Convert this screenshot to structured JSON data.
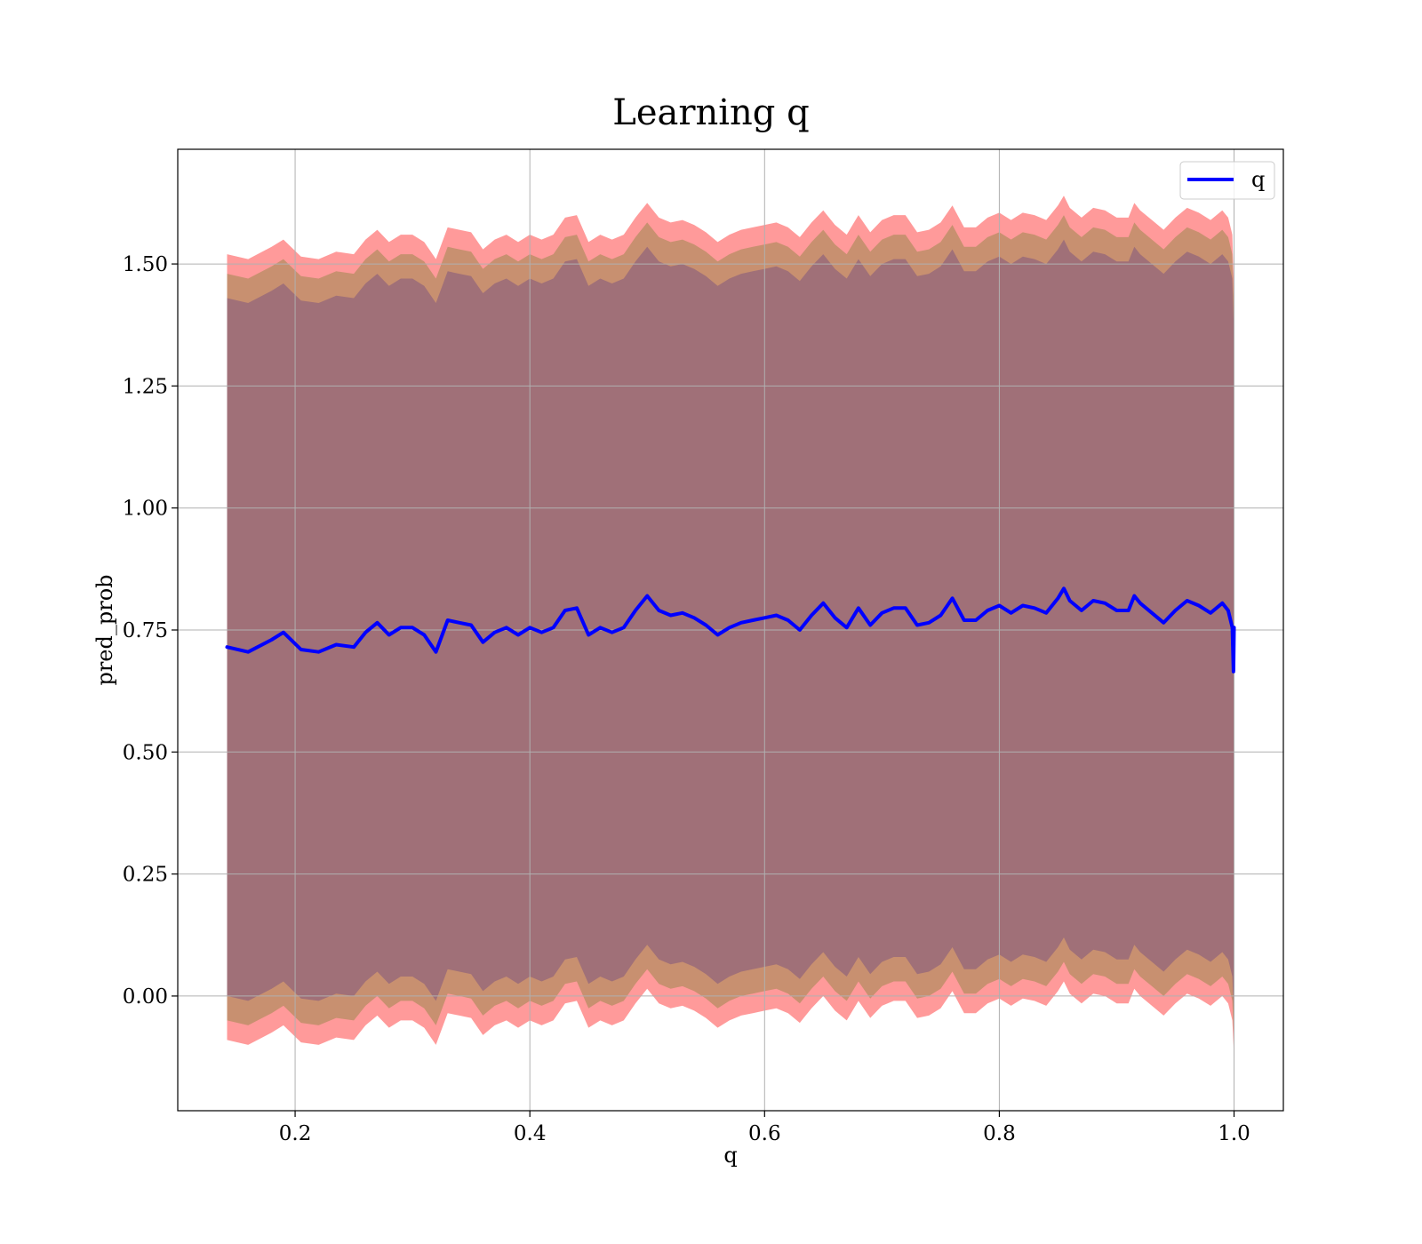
{
  "chart_data": {
    "type": "area",
    "title": "Learning q",
    "xlabel": "q",
    "ylabel": "pred_prob",
    "xlim": [
      0.1,
      1.042
    ],
    "ylim": [
      -0.235,
      1.735
    ],
    "xticks": [
      0.2,
      0.4,
      0.6,
      0.8,
      1.0
    ],
    "xtick_labels": [
      "0.2",
      "0.4",
      "0.6",
      "0.8",
      "1.0"
    ],
    "yticks": [
      0.0,
      0.25,
      0.5,
      0.75,
      1.0,
      1.25,
      1.5
    ],
    "ytick_labels": [
      "0.00",
      "0.25",
      "0.50",
      "0.75",
      "1.00",
      "1.25",
      "1.50"
    ],
    "grid": true,
    "legend": {
      "position": "top-right",
      "entries": [
        "q"
      ]
    },
    "colors": {
      "line": "#0000ff",
      "outer_band": "#ff9a9a",
      "middle_band": "#c89070",
      "inner_band": "#a07078"
    },
    "series": [
      {
        "name": "q",
        "style": "line",
        "x": [
          0.142,
          0.16,
          0.18,
          0.19,
          0.205,
          0.22,
          0.235,
          0.25,
          0.26,
          0.27,
          0.28,
          0.29,
          0.3,
          0.31,
          0.32,
          0.33,
          0.34,
          0.35,
          0.36,
          0.37,
          0.38,
          0.39,
          0.4,
          0.41,
          0.42,
          0.43,
          0.44,
          0.45,
          0.46,
          0.47,
          0.48,
          0.49,
          0.5,
          0.51,
          0.52,
          0.53,
          0.54,
          0.55,
          0.56,
          0.57,
          0.58,
          0.59,
          0.6,
          0.61,
          0.62,
          0.63,
          0.64,
          0.65,
          0.66,
          0.67,
          0.68,
          0.69,
          0.7,
          0.71,
          0.72,
          0.73,
          0.74,
          0.75,
          0.76,
          0.77,
          0.78,
          0.79,
          0.8,
          0.81,
          0.82,
          0.83,
          0.84,
          0.85,
          0.855,
          0.86,
          0.87,
          0.88,
          0.89,
          0.9,
          0.91,
          0.915,
          0.92,
          0.93,
          0.94,
          0.95,
          0.96,
          0.97,
          0.98,
          0.99,
          0.995,
          0.9985,
          0.9995,
          1.0
        ],
        "y": [
          0.715,
          0.705,
          0.73,
          0.745,
          0.71,
          0.705,
          0.72,
          0.715,
          0.745,
          0.765,
          0.74,
          0.755,
          0.755,
          0.74,
          0.705,
          0.77,
          0.765,
          0.76,
          0.725,
          0.745,
          0.755,
          0.74,
          0.755,
          0.745,
          0.755,
          0.79,
          0.795,
          0.74,
          0.755,
          0.745,
          0.755,
          0.79,
          0.82,
          0.79,
          0.78,
          0.785,
          0.775,
          0.76,
          0.74,
          0.755,
          0.765,
          0.77,
          0.775,
          0.78,
          0.77,
          0.75,
          0.78,
          0.805,
          0.775,
          0.755,
          0.795,
          0.76,
          0.785,
          0.795,
          0.795,
          0.76,
          0.765,
          0.78,
          0.815,
          0.77,
          0.77,
          0.79,
          0.8,
          0.785,
          0.8,
          0.795,
          0.785,
          0.815,
          0.835,
          0.81,
          0.79,
          0.81,
          0.805,
          0.79,
          0.79,
          0.82,
          0.805,
          0.785,
          0.765,
          0.79,
          0.81,
          0.8,
          0.785,
          0.805,
          0.79,
          0.755,
          0.665,
          0.755
        ]
      },
      {
        "name": "",
        "style": "band",
        "fill": "outer",
        "x": [
          0.142,
          0.16,
          0.18,
          0.19,
          0.205,
          0.22,
          0.235,
          0.25,
          0.26,
          0.27,
          0.28,
          0.29,
          0.3,
          0.31,
          0.32,
          0.33,
          0.34,
          0.35,
          0.36,
          0.37,
          0.38,
          0.39,
          0.4,
          0.41,
          0.42,
          0.43,
          0.44,
          0.45,
          0.46,
          0.47,
          0.48,
          0.49,
          0.5,
          0.51,
          0.52,
          0.53,
          0.54,
          0.55,
          0.56,
          0.57,
          0.58,
          0.59,
          0.6,
          0.61,
          0.62,
          0.63,
          0.64,
          0.65,
          0.66,
          0.67,
          0.68,
          0.69,
          0.7,
          0.71,
          0.72,
          0.73,
          0.74,
          0.75,
          0.76,
          0.77,
          0.78,
          0.79,
          0.8,
          0.81,
          0.82,
          0.83,
          0.84,
          0.85,
          0.855,
          0.86,
          0.87,
          0.88,
          0.89,
          0.9,
          0.91,
          0.915,
          0.92,
          0.93,
          0.94,
          0.95,
          0.96,
          0.97,
          0.98,
          0.99,
          0.995,
          0.9985,
          0.9995,
          1.0
        ],
        "upper": [
          1.52,
          1.51,
          1.535,
          1.55,
          1.515,
          1.51,
          1.525,
          1.52,
          1.55,
          1.57,
          1.545,
          1.56,
          1.56,
          1.545,
          1.51,
          1.575,
          1.57,
          1.565,
          1.53,
          1.55,
          1.56,
          1.545,
          1.56,
          1.55,
          1.56,
          1.595,
          1.6,
          1.545,
          1.56,
          1.55,
          1.56,
          1.595,
          1.625,
          1.595,
          1.585,
          1.59,
          1.58,
          1.565,
          1.545,
          1.56,
          1.57,
          1.575,
          1.58,
          1.585,
          1.575,
          1.555,
          1.585,
          1.61,
          1.58,
          1.56,
          1.6,
          1.565,
          1.59,
          1.6,
          1.6,
          1.565,
          1.57,
          1.585,
          1.62,
          1.575,
          1.575,
          1.595,
          1.605,
          1.59,
          1.605,
          1.6,
          1.59,
          1.62,
          1.64,
          1.615,
          1.595,
          1.615,
          1.61,
          1.595,
          1.595,
          1.625,
          1.61,
          1.59,
          1.57,
          1.595,
          1.615,
          1.605,
          1.59,
          1.61,
          1.595,
          1.56,
          1.48,
          1.44
        ],
        "lower": [
          -0.09,
          -0.1,
          -0.075,
          -0.06,
          -0.095,
          -0.1,
          -0.085,
          -0.09,
          -0.06,
          -0.04,
          -0.065,
          -0.05,
          -0.05,
          -0.065,
          -0.1,
          -0.035,
          -0.04,
          -0.045,
          -0.08,
          -0.06,
          -0.05,
          -0.065,
          -0.05,
          -0.06,
          -0.05,
          -0.015,
          -0.01,
          -0.065,
          -0.05,
          -0.06,
          -0.05,
          -0.015,
          0.015,
          -0.015,
          -0.025,
          -0.02,
          -0.03,
          -0.045,
          -0.065,
          -0.05,
          -0.04,
          -0.035,
          -0.03,
          -0.025,
          -0.035,
          -0.055,
          -0.025,
          0.0,
          -0.03,
          -0.05,
          -0.01,
          -0.045,
          -0.02,
          -0.01,
          -0.01,
          -0.045,
          -0.04,
          -0.025,
          0.01,
          -0.035,
          -0.035,
          -0.015,
          -0.005,
          -0.02,
          -0.005,
          -0.01,
          -0.02,
          0.01,
          0.03,
          0.005,
          -0.015,
          0.005,
          0.0,
          -0.015,
          -0.015,
          0.015,
          0.0,
          -0.02,
          -0.04,
          -0.015,
          0.005,
          -0.005,
          -0.02,
          0.0,
          -0.015,
          -0.05,
          -0.1,
          -0.14
        ]
      },
      {
        "name": "",
        "style": "band",
        "fill": "middle",
        "x": [
          0.142,
          0.16,
          0.18,
          0.19,
          0.205,
          0.22,
          0.235,
          0.25,
          0.26,
          0.27,
          0.28,
          0.29,
          0.3,
          0.31,
          0.32,
          0.33,
          0.34,
          0.35,
          0.36,
          0.37,
          0.38,
          0.39,
          0.4,
          0.41,
          0.42,
          0.43,
          0.44,
          0.45,
          0.46,
          0.47,
          0.48,
          0.49,
          0.5,
          0.51,
          0.52,
          0.53,
          0.54,
          0.55,
          0.56,
          0.57,
          0.58,
          0.59,
          0.6,
          0.61,
          0.62,
          0.63,
          0.64,
          0.65,
          0.66,
          0.67,
          0.68,
          0.69,
          0.7,
          0.71,
          0.72,
          0.73,
          0.74,
          0.75,
          0.76,
          0.77,
          0.78,
          0.79,
          0.8,
          0.81,
          0.82,
          0.83,
          0.84,
          0.85,
          0.855,
          0.86,
          0.87,
          0.88,
          0.89,
          0.9,
          0.91,
          0.915,
          0.92,
          0.93,
          0.94,
          0.95,
          0.96,
          0.97,
          0.98,
          0.99,
          0.995,
          0.9985,
          0.9995,
          1.0
        ],
        "upper": [
          1.48,
          1.47,
          1.495,
          1.51,
          1.475,
          1.47,
          1.485,
          1.48,
          1.51,
          1.53,
          1.505,
          1.52,
          1.52,
          1.505,
          1.47,
          1.535,
          1.53,
          1.525,
          1.49,
          1.51,
          1.52,
          1.505,
          1.52,
          1.51,
          1.52,
          1.555,
          1.56,
          1.505,
          1.52,
          1.51,
          1.52,
          1.555,
          1.585,
          1.555,
          1.545,
          1.55,
          1.54,
          1.525,
          1.505,
          1.52,
          1.53,
          1.535,
          1.54,
          1.545,
          1.535,
          1.515,
          1.545,
          1.57,
          1.54,
          1.52,
          1.56,
          1.525,
          1.55,
          1.56,
          1.56,
          1.525,
          1.53,
          1.545,
          1.58,
          1.535,
          1.535,
          1.555,
          1.565,
          1.55,
          1.565,
          1.56,
          1.55,
          1.58,
          1.6,
          1.575,
          1.555,
          1.575,
          1.57,
          1.555,
          1.555,
          1.585,
          1.57,
          1.55,
          1.53,
          1.555,
          1.575,
          1.565,
          1.55,
          1.57,
          1.555,
          1.52,
          1.44,
          1.41
        ],
        "lower": [
          -0.05,
          -0.06,
          -0.035,
          -0.02,
          -0.055,
          -0.06,
          -0.045,
          -0.05,
          -0.02,
          0.0,
          -0.025,
          -0.01,
          -0.01,
          -0.025,
          -0.06,
          0.005,
          0.0,
          -0.005,
          -0.04,
          -0.02,
          -0.01,
          -0.025,
          -0.01,
          -0.02,
          -0.01,
          0.025,
          0.03,
          -0.025,
          -0.01,
          -0.02,
          -0.01,
          0.025,
          0.055,
          0.025,
          0.015,
          0.02,
          0.01,
          -0.005,
          -0.025,
          -0.01,
          0.0,
          0.005,
          0.01,
          0.015,
          0.005,
          -0.015,
          0.015,
          0.04,
          0.01,
          -0.01,
          0.03,
          -0.005,
          0.02,
          0.03,
          0.03,
          -0.005,
          0.0,
          0.015,
          0.05,
          0.005,
          0.005,
          0.025,
          0.035,
          0.02,
          0.035,
          0.03,
          0.02,
          0.05,
          0.07,
          0.045,
          0.025,
          0.045,
          0.04,
          0.025,
          0.025,
          0.055,
          0.04,
          0.02,
          0.0,
          0.025,
          0.045,
          0.035,
          0.02,
          0.04,
          0.025,
          -0.01,
          -0.07,
          -0.11
        ]
      },
      {
        "name": "",
        "style": "band",
        "fill": "inner",
        "x": [
          0.142,
          0.16,
          0.18,
          0.19,
          0.205,
          0.22,
          0.235,
          0.25,
          0.26,
          0.27,
          0.28,
          0.29,
          0.3,
          0.31,
          0.32,
          0.33,
          0.34,
          0.35,
          0.36,
          0.37,
          0.38,
          0.39,
          0.4,
          0.41,
          0.42,
          0.43,
          0.44,
          0.45,
          0.46,
          0.47,
          0.48,
          0.49,
          0.5,
          0.51,
          0.52,
          0.53,
          0.54,
          0.55,
          0.56,
          0.57,
          0.58,
          0.59,
          0.6,
          0.61,
          0.62,
          0.63,
          0.64,
          0.65,
          0.66,
          0.67,
          0.68,
          0.69,
          0.7,
          0.71,
          0.72,
          0.73,
          0.74,
          0.75,
          0.76,
          0.77,
          0.78,
          0.79,
          0.8,
          0.81,
          0.82,
          0.83,
          0.84,
          0.85,
          0.855,
          0.86,
          0.87,
          0.88,
          0.89,
          0.9,
          0.91,
          0.915,
          0.92,
          0.93,
          0.94,
          0.95,
          0.96,
          0.97,
          0.98,
          0.99,
          0.995,
          0.9985,
          0.9995,
          1.0
        ],
        "upper": [
          1.43,
          1.42,
          1.445,
          1.46,
          1.425,
          1.42,
          1.435,
          1.43,
          1.46,
          1.48,
          1.455,
          1.47,
          1.47,
          1.455,
          1.42,
          1.485,
          1.48,
          1.475,
          1.44,
          1.46,
          1.47,
          1.455,
          1.47,
          1.46,
          1.47,
          1.505,
          1.51,
          1.455,
          1.47,
          1.46,
          1.47,
          1.505,
          1.535,
          1.505,
          1.495,
          1.5,
          1.49,
          1.475,
          1.455,
          1.47,
          1.48,
          1.485,
          1.49,
          1.495,
          1.485,
          1.465,
          1.495,
          1.52,
          1.49,
          1.47,
          1.51,
          1.475,
          1.5,
          1.51,
          1.51,
          1.475,
          1.48,
          1.495,
          1.53,
          1.485,
          1.485,
          1.505,
          1.515,
          1.5,
          1.515,
          1.51,
          1.5,
          1.53,
          1.55,
          1.525,
          1.505,
          1.525,
          1.52,
          1.505,
          1.505,
          1.535,
          1.52,
          1.5,
          1.48,
          1.505,
          1.525,
          1.515,
          1.5,
          1.52,
          1.505,
          1.47,
          1.39,
          1.37
        ],
        "lower": [
          0.0,
          -0.01,
          0.015,
          0.03,
          -0.005,
          -0.01,
          0.005,
          0.0,
          0.03,
          0.05,
          0.025,
          0.04,
          0.04,
          0.025,
          -0.01,
          0.055,
          0.05,
          0.045,
          0.01,
          0.03,
          0.04,
          0.025,
          0.04,
          0.03,
          0.04,
          0.075,
          0.08,
          0.025,
          0.04,
          0.03,
          0.04,
          0.075,
          0.105,
          0.075,
          0.065,
          0.07,
          0.06,
          0.045,
          0.025,
          0.04,
          0.05,
          0.055,
          0.06,
          0.065,
          0.055,
          0.035,
          0.065,
          0.09,
          0.06,
          0.04,
          0.08,
          0.045,
          0.07,
          0.08,
          0.08,
          0.045,
          0.05,
          0.065,
          0.1,
          0.055,
          0.055,
          0.075,
          0.085,
          0.07,
          0.085,
          0.08,
          0.07,
          0.1,
          0.12,
          0.095,
          0.075,
          0.095,
          0.09,
          0.075,
          0.075,
          0.105,
          0.09,
          0.07,
          0.05,
          0.075,
          0.095,
          0.085,
          0.07,
          0.09,
          0.075,
          0.04,
          -0.02,
          -0.07
        ]
      }
    ]
  }
}
